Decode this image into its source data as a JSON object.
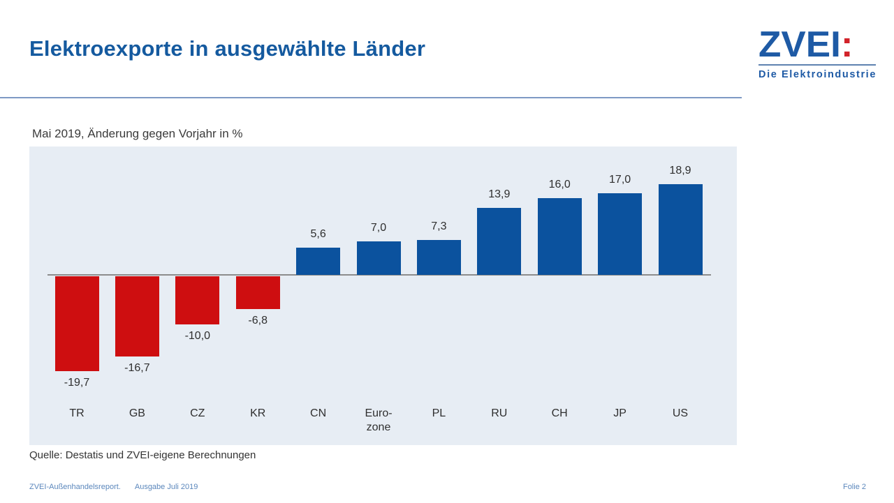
{
  "page": {
    "title": "Elektroexporte in ausgewählte Länder",
    "subtitle": "Mai 2019, Änderung gegen Vorjahr in %",
    "source": "Quelle: Destatis und ZVEI-eigene Berechnungen",
    "footer": {
      "report": "ZVEI-Außenhandelsreport.",
      "edition": "Ausgabe Juli 2019",
      "page_number": "Folie 2"
    }
  },
  "logo": {
    "name": "ZVEI",
    "colon": ":",
    "tagline": "Die Elektroindustrie"
  },
  "colors": {
    "title_blue": "#155A9F",
    "logo_blue": "#1E5AA5",
    "logo_red": "#D2232A",
    "chart_background": "#E7EDF4",
    "positive_bar": "#0B529E",
    "negative_bar": "#CE0E10",
    "axis_gray": "#8C8C8C"
  },
  "chart_data": {
    "type": "bar",
    "title": "Mai 2019, Änderung gegen Vorjahr in %",
    "xlabel": "",
    "ylabel": "Änderung gegen Vorjahr in %",
    "categories": [
      "TR",
      "GB",
      "CZ",
      "KR",
      "CN",
      "Euro-\nzone",
      "PL",
      "RU",
      "CH",
      "JP",
      "US"
    ],
    "values": [
      -19.7,
      -16.7,
      -10.0,
      -6.8,
      5.6,
      7.0,
      7.3,
      13.9,
      16.0,
      17.0,
      18.9
    ],
    "value_labels": [
      "-19,7",
      "-16,7",
      "-10,0",
      "-6,8",
      "5,6",
      "7,0",
      "7,3",
      "13,9",
      "16,0",
      "17,0",
      "18,9"
    ],
    "ylim": [
      -22,
      21
    ],
    "grid": false,
    "legend": false,
    "bar_colors": {
      "positive": "#0B529E",
      "negative": "#CE0E10"
    }
  }
}
